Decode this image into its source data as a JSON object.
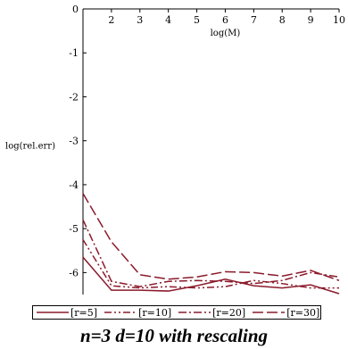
{
  "chart_data": {
    "type": "line",
    "title": "",
    "caption": "n=3 d=10 with rescaling",
    "xlabel": "log(M)",
    "ylabel": "log(rel.err)",
    "xlim": [
      1,
      10
    ],
    "ylim": [
      -6.5,
      0
    ],
    "x_ticks": [
      2,
      3,
      4,
      5,
      6,
      7,
      8,
      9,
      10
    ],
    "y_ticks": [
      0,
      -1,
      -2,
      -3,
      -4,
      -5,
      -6
    ],
    "x": [
      1,
      2,
      3,
      4,
      5,
      6,
      7,
      8,
      9,
      10
    ],
    "color": "#8b1a2b",
    "legend_position": "bottom",
    "series": [
      {
        "name": "[r=5]",
        "dash": "solid",
        "values": [
          -5.65,
          -6.4,
          -6.4,
          -6.42,
          -6.3,
          -6.15,
          -6.3,
          -6.35,
          -6.28,
          -6.48
        ]
      },
      {
        "name": "[r=10]",
        "dash": "dash-dot-dot",
        "values": [
          -5.25,
          -6.3,
          -6.35,
          -6.32,
          -6.35,
          -6.32,
          -6.18,
          -6.25,
          -6.35,
          -6.35
        ]
      },
      {
        "name": "[r=20]",
        "dash": "dash-dot",
        "values": [
          -4.8,
          -6.2,
          -6.32,
          -6.2,
          -6.18,
          -6.2,
          -6.25,
          -6.18,
          -6.0,
          -6.1
        ]
      },
      {
        "name": "[r=30]",
        "dash": "long-dash",
        "values": [
          -4.2,
          -5.3,
          -6.05,
          -6.15,
          -6.1,
          -5.98,
          -6.0,
          -6.08,
          -5.95,
          -6.18
        ]
      }
    ]
  }
}
